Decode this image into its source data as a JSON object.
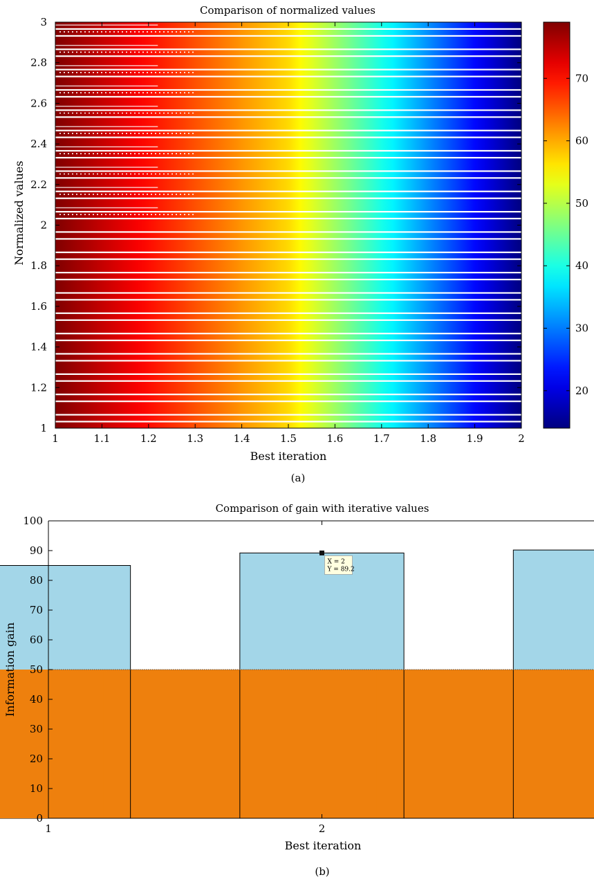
{
  "chart_data": [
    {
      "type": "heatmap",
      "title": "Comparison of normalized values",
      "xlabel": "Best iteration",
      "ylabel": "Normalized values",
      "xlim": [
        1,
        2
      ],
      "ylim": [
        1,
        3
      ],
      "xticks": [
        1,
        1.1,
        1.2,
        1.3,
        1.4,
        1.5,
        1.6,
        1.7,
        1.8,
        1.9,
        2
      ],
      "yticks": [
        1,
        1.2,
        1.4,
        1.6,
        1.8,
        2,
        2.2,
        2.4,
        2.6,
        2.8,
        3
      ],
      "xtick_labels": [
        "1",
        "1.1",
        "1.2",
        "1.3",
        "1.4",
        "1.5",
        "1.6",
        "1.7",
        "1.8",
        "1.9",
        "2"
      ],
      "ytick_labels": [
        "1",
        "1.2",
        "1.4",
        "1.6",
        "1.8",
        "2",
        "2.2",
        "2.4",
        "2.6",
        "2.8",
        "3"
      ],
      "colorbar": {
        "range": [
          14,
          79
        ],
        "ticks": [
          20,
          30,
          40,
          50,
          60,
          70
        ],
        "tick_labels": [
          "20",
          "30",
          "40",
          "50",
          "60",
          "70"
        ],
        "colormap": "jet"
      },
      "value_left": 79,
      "value_mid": 57,
      "value_right": 14,
      "caption": "(a)"
    },
    {
      "type": "bar",
      "title": "Comparison of gain with iterative values",
      "xlabel": "Best iteration",
      "ylabel": "Information gain",
      "ylim": [
        0,
        100
      ],
      "xlim": [
        1,
        2.995
      ],
      "xticks": [
        1,
        2
      ],
      "xtick_labels": [
        "1",
        "2"
      ],
      "yticks": [
        0,
        10,
        20,
        30,
        40,
        50,
        60,
        70,
        80,
        90,
        100
      ],
      "ytick_labels": [
        "0",
        "10",
        "20",
        "30",
        "40",
        "50",
        "60",
        "70",
        "80",
        "90",
        "100"
      ],
      "bar_width": 0.6,
      "x": [
        1,
        2,
        3
      ],
      "series": [
        {
          "values": [
            85,
            89.2,
            90.2
          ],
          "color": "#a3d6e8"
        },
        {
          "values": [
            50,
            50,
            50,
            50,
            50
          ],
          "x": [
            1,
            1.5,
            2,
            2.5,
            3
          ],
          "color": "#ee800d"
        }
      ],
      "datatip": {
        "x_label": "X = 2",
        "y_label": "Y = 89.2",
        "x": 2,
        "y": 89.2
      },
      "caption": "(b)"
    }
  ]
}
